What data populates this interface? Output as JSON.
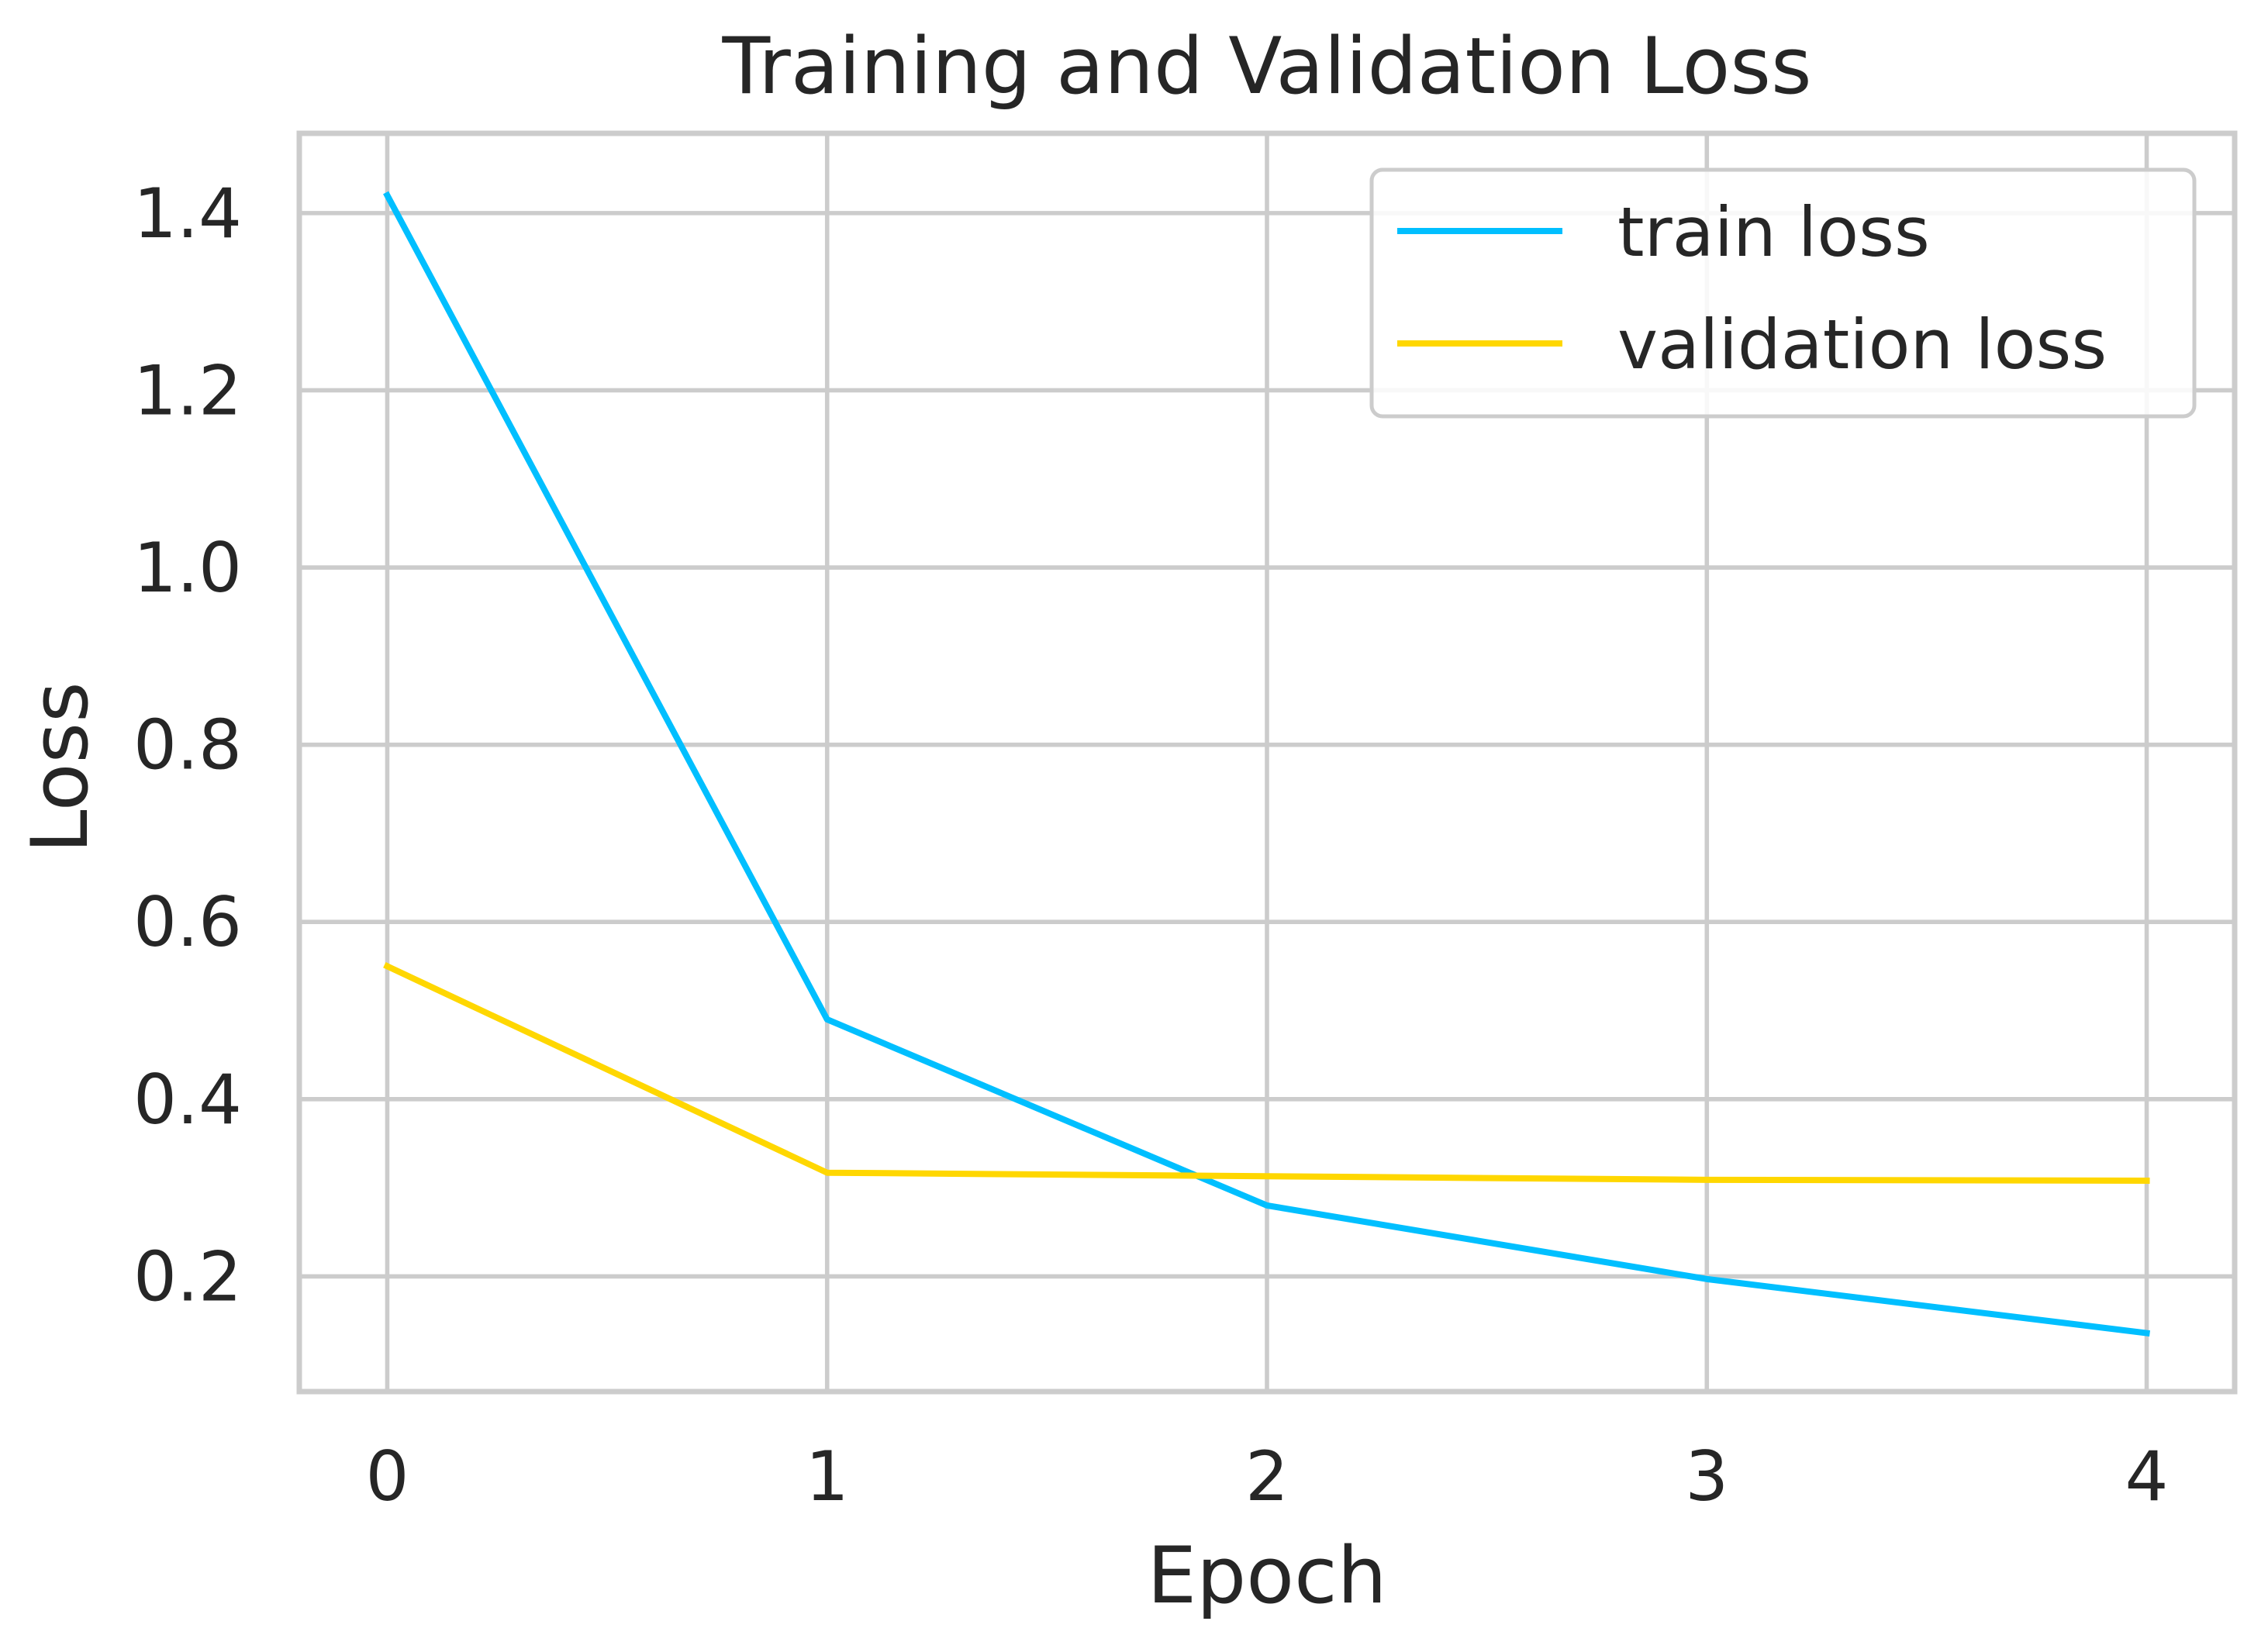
{
  "chart_data": {
    "type": "line",
    "title": "Training and Validation Loss",
    "xlabel": "Epoch",
    "ylabel": "Loss",
    "x": [
      0,
      1,
      2,
      3,
      4
    ],
    "xlim": [
      -0.2,
      4.2
    ],
    "ylim": [
      0.07,
      1.49
    ],
    "xticks": [
      "0",
      "1",
      "2",
      "3",
      "4"
    ],
    "yticks": [
      "0.2",
      "0.4",
      "0.6",
      "0.8",
      "1.0",
      "1.2",
      "1.4"
    ],
    "ytick_values": [
      0.2,
      0.4,
      0.6,
      0.8,
      1.0,
      1.2,
      1.4
    ],
    "grid": true,
    "legend_position": "upper right",
    "series": [
      {
        "name": "train loss",
        "color": "#00bfff",
        "values": [
          1.42,
          0.49,
          0.28,
          0.197,
          0.136
        ]
      },
      {
        "name": "validation loss",
        "color": "#ffd700",
        "values": [
          0.55,
          0.317,
          0.313,
          0.309,
          0.308
        ]
      }
    ]
  }
}
